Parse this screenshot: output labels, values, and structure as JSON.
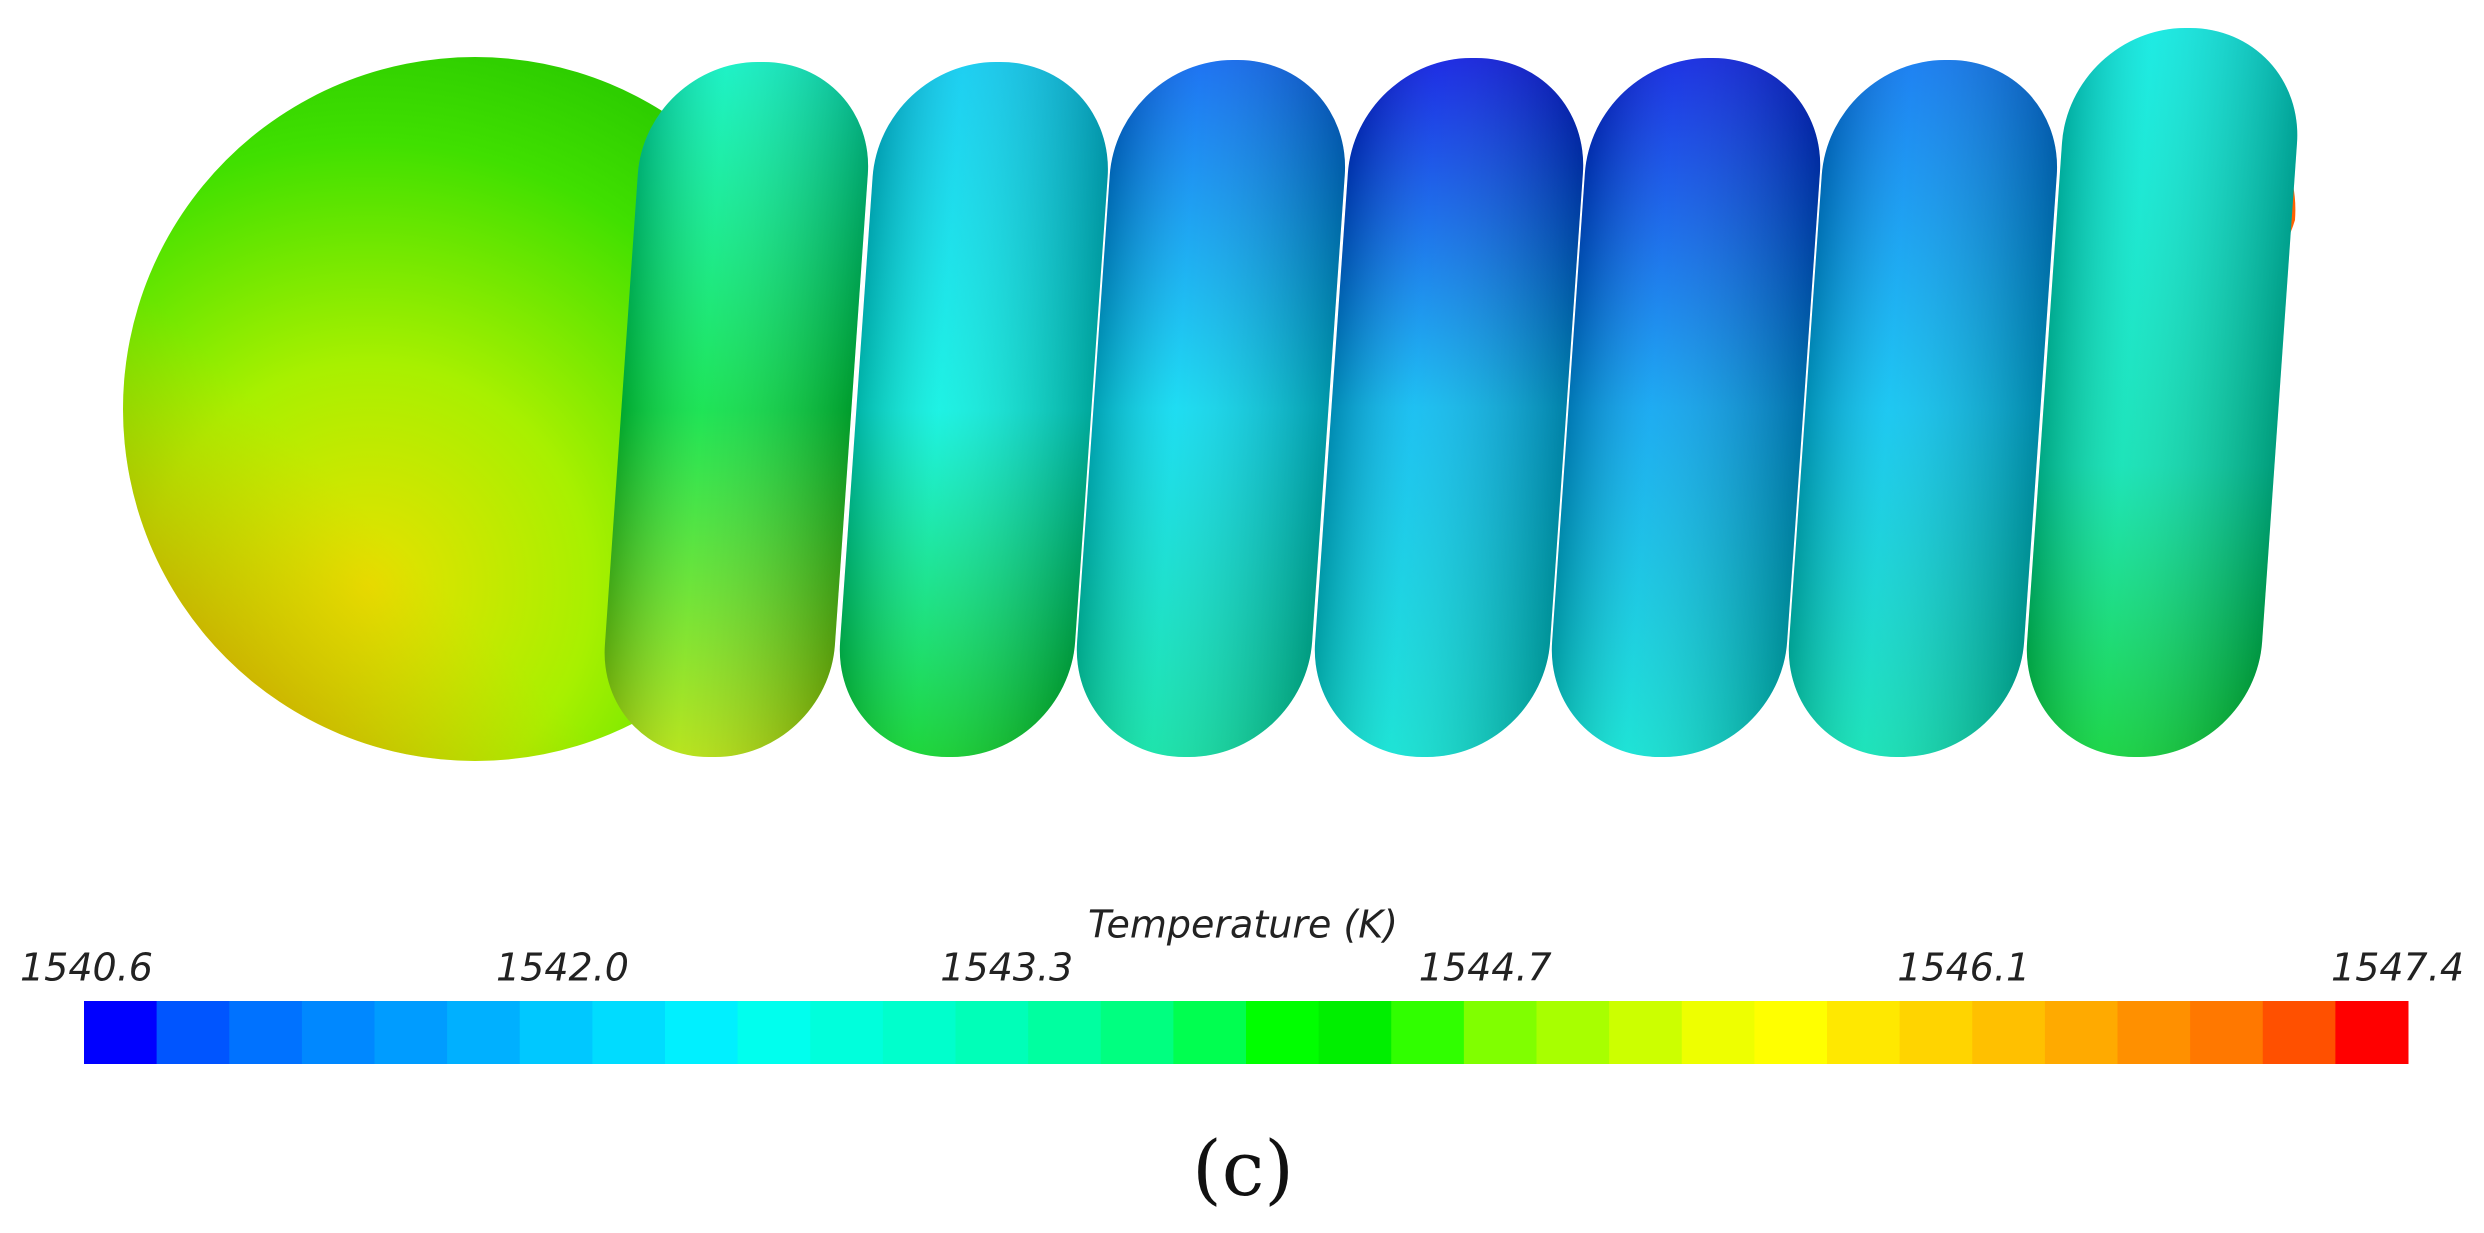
{
  "colorbar": {
    "title": "Temperature (K)",
    "lim": [
      1540.6,
      1547.4
    ],
    "ticks": [
      1540.6,
      {
        "value": 1542,
        "label": "1542.0"
      },
      1543.3,
      1544.7,
      1546.1,
      1547.4
    ],
    "colors": [
      "#0000ff",
      "#0055ff",
      "#0072ff",
      "#0088ff",
      "#009cff",
      "#00b0ff",
      "#00c8ff",
      "#00dcff",
      "#00f0ff",
      "#00ffee",
      "#00ffdc",
      "#00ffcc",
      "#00ffb8",
      "#00ffa0",
      "#00ff80",
      "#00ff50",
      "#00ff00",
      "#00ef00",
      "#30ff00",
      "#80ff00",
      "#a8ff00",
      "#ccff00",
      "#eeff00",
      "#ffff00",
      "#ffe800",
      "#ffd400",
      "#ffc000",
      "#ffaa00",
      "#ff9000",
      "#ff7800",
      "#ff5000",
      "#ff0000"
    ]
  },
  "panel_label": "(c)"
}
